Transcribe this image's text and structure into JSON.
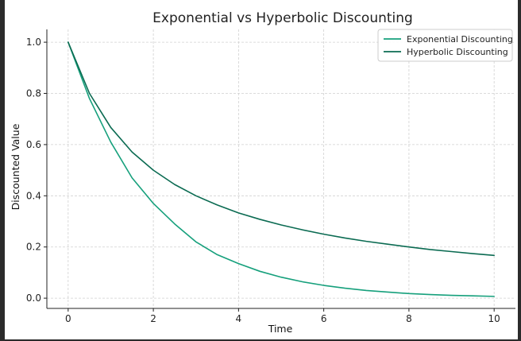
{
  "chart_data": {
    "type": "line",
    "title": "Exponential vs Hyperbolic Discounting",
    "xlabel": "Time",
    "ylabel": "Discounted Value",
    "xlim": [
      -0.5,
      10.5
    ],
    "ylim": [
      -0.04,
      1.05
    ],
    "xticks": [
      0,
      2,
      4,
      6,
      8,
      10
    ],
    "xtick_labels": [
      "0",
      "2",
      "4",
      "6",
      "8",
      "10"
    ],
    "yticks": [
      0.0,
      0.2,
      0.4,
      0.6,
      0.8,
      1.0
    ],
    "ytick_labels": [
      "0.0",
      "0.2",
      "0.4",
      "0.6",
      "0.8",
      "1.0"
    ],
    "grid": true,
    "legend_position": "top-right",
    "series": [
      {
        "name": "Exponential Discounting",
        "color": "#16a07c",
        "x": [
          0,
          0.5,
          1,
          1.5,
          2,
          2.5,
          3,
          3.5,
          4,
          4.5,
          5,
          5.5,
          6,
          6.5,
          7,
          7.5,
          8,
          8.5,
          9,
          9.5,
          10
        ],
        "y": [
          1.0,
          0.78,
          0.61,
          0.47,
          0.37,
          0.29,
          0.22,
          0.17,
          0.135,
          0.105,
          0.082,
          0.064,
          0.05,
          0.039,
          0.03,
          0.024,
          0.018,
          0.014,
          0.011,
          0.009,
          0.007
        ]
      },
      {
        "name": "Hyperbolic Discounting",
        "color": "#0b6b52",
        "x": [
          0,
          0.5,
          1,
          1.5,
          2,
          2.5,
          3,
          3.5,
          4,
          4.5,
          5,
          5.5,
          6,
          6.5,
          7,
          7.5,
          8,
          8.5,
          9,
          9.5,
          10
        ],
        "y": [
          1.0,
          0.8,
          0.667,
          0.571,
          0.5,
          0.444,
          0.4,
          0.364,
          0.333,
          0.308,
          0.286,
          0.267,
          0.25,
          0.235,
          0.222,
          0.211,
          0.2,
          0.19,
          0.182,
          0.174,
          0.167
        ]
      }
    ]
  }
}
